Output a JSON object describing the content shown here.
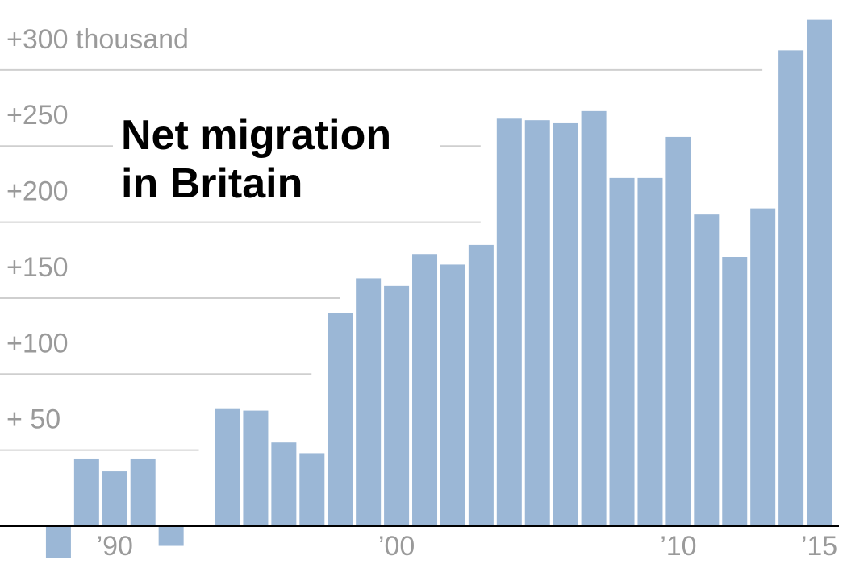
{
  "chart_data": {
    "type": "bar",
    "title": "Net migration in Britain",
    "categories": [
      null,
      null,
      null,
      "’90",
      null,
      null,
      null,
      null,
      null,
      null,
      null,
      null,
      null,
      "’00",
      null,
      null,
      null,
      null,
      null,
      null,
      null,
      null,
      null,
      "’10",
      null,
      null,
      null,
      null,
      "’15"
    ],
    "values": [
      1,
      -21,
      44,
      36,
      44,
      -13,
      0,
      77,
      76,
      55,
      48,
      140,
      163,
      158,
      179,
      172,
      185,
      268,
      267,
      265,
      273,
      229,
      229,
      256,
      205,
      177,
      209,
      313,
      333
    ],
    "color": "#9bb7d6",
    "ylim": [
      -25,
      336
    ],
    "yticks": [
      {
        "value": 50,
        "label": "+  50"
      },
      {
        "value": 100,
        "label": "+100"
      },
      {
        "value": 150,
        "label": "+150"
      },
      {
        "value": 200,
        "label": "+200"
      },
      {
        "value": 250,
        "label": "+250"
      },
      {
        "value": 300,
        "label": "+300 thousand"
      }
    ],
    "grid": true
  }
}
